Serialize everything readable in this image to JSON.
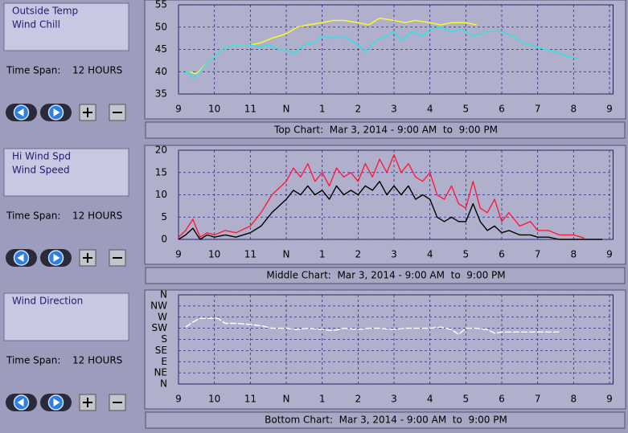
{
  "panels": [
    {
      "time_span_label": "Time Span:",
      "time_span": "12 HOURS",
      "caption": "Top Chart:  Mar 3, 2014 - 9:00 AM  to  9:00 PM",
      "chart": {
        "type": "line",
        "grid": true,
        "xlim": [
          9,
          21.1
        ],
        "xticks": [
          9,
          10,
          11,
          {
            "value": 12,
            "label": "N"
          },
          {
            "value": 13,
            "label": "1"
          },
          {
            "value": 14,
            "label": "2"
          },
          {
            "value": 15,
            "label": "3"
          },
          {
            "value": 16,
            "label": "4"
          },
          {
            "value": 17,
            "label": "5"
          },
          {
            "value": 18,
            "label": "6"
          },
          {
            "value": 19,
            "label": "7"
          },
          {
            "value": 20,
            "label": "8"
          },
          {
            "value": 21,
            "label": "9"
          }
        ],
        "ylim": [
          35,
          55
        ],
        "yticks": [
          35,
          40,
          45,
          50,
          55
        ],
        "series": [
          {
            "name": "Outside Temp",
            "color": "#ffff22",
            "x": [
              9.1,
              9.3,
              9.5,
              9.8,
              10,
              10.3,
              10.6,
              11,
              11.3,
              11.6,
              12,
              12.3,
              12.6,
              13,
              13.3,
              13.6,
              14,
              14.3,
              14.6,
              15,
              15.3,
              15.6,
              16,
              16.3,
              16.6,
              17,
              17.3
            ],
            "values": [
              39.5,
              40,
              39.5,
              42,
              43.5,
              45.5,
              46,
              46,
              46.5,
              47.5,
              48.5,
              50,
              50.5,
              51,
              51.5,
              51.5,
              51,
              50.5,
              52,
              51.5,
              51,
              51.5,
              51,
              50.5,
              51,
              51,
              50.5
            ]
          },
          {
            "name": "Wind Chill",
            "color": "#22e8e8",
            "x": [
              9.1,
              9.3,
              9.4,
              9.6,
              9.8,
              10,
              10.3,
              10.6,
              11,
              11.3,
              11.5,
              11.8,
              12,
              12.2,
              12.5,
              12.8,
              13,
              13.3,
              13.6,
              14,
              14.2,
              14.5,
              14.8,
              15,
              15.2,
              15.5,
              15.8,
              16,
              16.3,
              16.6,
              16.9,
              17.2,
              17.6,
              18,
              18.3,
              18.6,
              19,
              19.5,
              19.8,
              20.1
            ],
            "values": [
              39.5,
              40,
              38.5,
              40,
              42,
              43.5,
              45.5,
              46,
              46,
              45.5,
              46,
              45,
              45,
              44,
              46,
              46.5,
              48,
              47.5,
              48,
              46,
              44.5,
              47,
              48,
              49,
              47,
              49,
              48,
              49.5,
              50,
              49,
              49.5,
              48,
              49,
              49,
              48,
              46.5,
              45.5,
              44.5,
              43.5,
              43
            ]
          }
        ]
      }
    },
    {
      "time_span_label": "Time Span:",
      "time_span": "12 HOURS",
      "caption": "Middle Chart:  Mar 3, 2014 - 9:00 AM  to  9:00 PM",
      "chart": {
        "type": "line",
        "grid": true,
        "xlim": [
          9,
          21.1
        ],
        "xticks": [
          9,
          10,
          11,
          {
            "value": 12,
            "label": "N"
          },
          {
            "value": 13,
            "label": "1"
          },
          {
            "value": 14,
            "label": "2"
          },
          {
            "value": 15,
            "label": "3"
          },
          {
            "value": 16,
            "label": "4"
          },
          {
            "value": 17,
            "label": "5"
          },
          {
            "value": 18,
            "label": "6"
          },
          {
            "value": 19,
            "label": "7"
          },
          {
            "value": 20,
            "label": "8"
          },
          {
            "value": 21,
            "label": "9"
          }
        ],
        "ylim": [
          0,
          20
        ],
        "yticks": [
          0,
          5,
          10,
          15,
          20
        ],
        "series": [
          {
            "name": "Hi Wind Spd",
            "color": "#ff1a3c",
            "x": [
              9,
              9.2,
              9.4,
              9.6,
              9.8,
              10,
              10.3,
              10.6,
              11,
              11.3,
              11.6,
              12,
              12.2,
              12.4,
              12.6,
              12.8,
              13,
              13.2,
              13.4,
              13.6,
              13.8,
              14,
              14.2,
              14.4,
              14.6,
              14.8,
              15,
              15.2,
              15.4,
              15.6,
              15.8,
              16,
              16.2,
              16.4,
              16.6,
              16.8,
              17,
              17.2,
              17.4,
              17.6,
              17.8,
              18,
              18.2,
              18.5,
              18.8,
              19,
              19.3,
              19.6,
              20,
              20.3
            ],
            "values": [
              0.5,
              2,
              4.5,
              0.5,
              1.5,
              1,
              2,
              1.5,
              3,
              6,
              10,
              13,
              16,
              14,
              17,
              13,
              15,
              12,
              16,
              14,
              15,
              13,
              17,
              14,
              18,
              15,
              19,
              15,
              17,
              14,
              13,
              15,
              10,
              9,
              12,
              8,
              7,
              13,
              7,
              6,
              9,
              4,
              6,
              3,
              4,
              2,
              2,
              1,
              1,
              0.3
            ]
          },
          {
            "name": "Wind Speed",
            "color": "#000000",
            "x": [
              9,
              9.2,
              9.4,
              9.6,
              9.8,
              10,
              10.3,
              10.6,
              11,
              11.3,
              11.6,
              12,
              12.2,
              12.4,
              12.6,
              12.8,
              13,
              13.2,
              13.4,
              13.6,
              13.8,
              14,
              14.2,
              14.4,
              14.6,
              14.8,
              15,
              15.2,
              15.4,
              15.6,
              15.8,
              16,
              16.2,
              16.4,
              16.6,
              16.8,
              17,
              17.2,
              17.4,
              17.6,
              17.8,
              18,
              18.2,
              18.5,
              18.8,
              19,
              19.3,
              19.6,
              20,
              20.5,
              20.8
            ],
            "values": [
              0,
              1,
              2.5,
              0,
              1,
              0.5,
              1,
              0.5,
              1.5,
              3,
              6,
              9,
              11,
              10,
              12,
              10,
              11,
              9,
              12,
              10,
              11,
              10,
              12,
              11,
              13,
              10,
              12,
              10,
              12,
              9,
              10,
              9,
              5,
              4,
              5,
              4,
              4,
              8,
              4,
              2,
              3,
              1.5,
              2,
              1,
              1,
              0.5,
              0.5,
              0,
              0,
              0,
              0
            ]
          }
        ]
      }
    },
    {
      "time_span_label": "Time Span:",
      "time_span": "12 HOURS",
      "caption": "Bottom Chart:  Mar 3, 2014 - 9:00 AM  to  9:00 PM",
      "chart": {
        "type": "line",
        "grid": true,
        "xlim": [
          9,
          21.1
        ],
        "xticks": [
          9,
          10,
          11,
          {
            "value": 12,
            "label": "N"
          },
          {
            "value": 13,
            "label": "1"
          },
          {
            "value": 14,
            "label": "2"
          },
          {
            "value": 15,
            "label": "3"
          },
          {
            "value": 16,
            "label": "4"
          },
          {
            "value": 17,
            "label": "5"
          },
          {
            "value": 18,
            "label": "6"
          },
          {
            "value": 19,
            "label": "7"
          },
          {
            "value": 20,
            "label": "8"
          },
          {
            "value": 21,
            "label": "9"
          }
        ],
        "ylim": [
          0,
          360
        ],
        "yticks": [
          {
            "value": 0,
            "label": "N"
          },
          {
            "value": 45,
            "label": "NE"
          },
          {
            "value": 90,
            "label": "E"
          },
          {
            "value": 135,
            "label": "SE"
          },
          {
            "value": 180,
            "label": "S"
          },
          {
            "value": 225,
            "label": "SW"
          },
          {
            "value": 270,
            "label": "W"
          },
          {
            "value": 315,
            "label": "NW"
          },
          {
            "value": 360,
            "label": "N"
          }
        ],
        "series": [
          {
            "name": "Wind Direction",
            "color": "#ffffff",
            "dashed": true,
            "x": [
              9.2,
              9.4,
              9.6,
              9.8,
              10.1,
              10.3,
              10.6,
              11,
              11.3,
              11.6,
              12,
              12.3,
              12.6,
              13,
              13.3,
              13.6,
              14,
              14.3,
              14.6,
              15,
              15.3,
              15.6,
              16,
              16.3,
              16.6,
              16.8,
              17,
              17.3,
              17.6,
              17.8,
              18,
              18.4,
              18.8,
              19.2,
              19.6
            ],
            "values": [
              230,
              250,
              265,
              265,
              265,
              245,
              245,
              240,
              235,
              225,
              225,
              220,
              225,
              220,
              215,
              225,
              220,
              225,
              225,
              220,
              225,
              225,
              225,
              230,
              220,
              200,
              225,
              225,
              220,
              205,
              210,
              210,
              210,
              210,
              210
            ]
          }
        ]
      }
    }
  ]
}
